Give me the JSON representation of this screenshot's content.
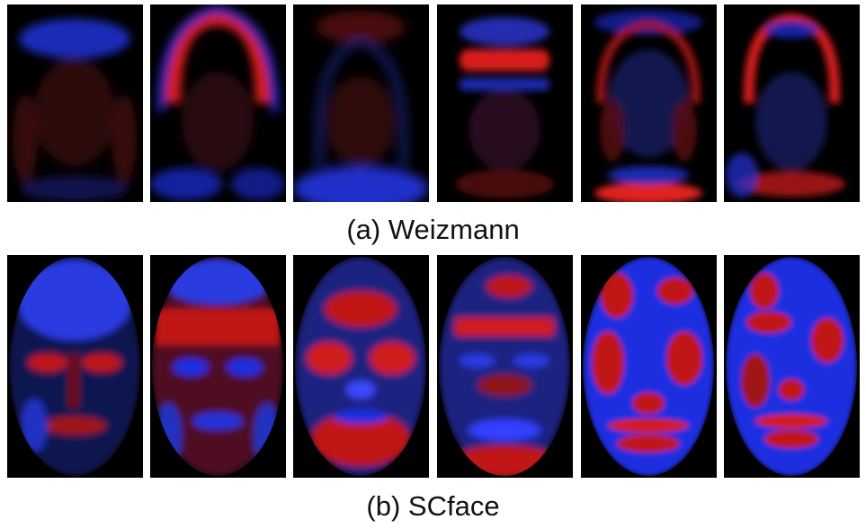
{
  "panels": [
    {
      "caption": "(a) Weizmann",
      "images": [
        {
          "name": "weizmann-face-map-1",
          "colors": [
            "#d01818",
            "#1e2ee0"
          ]
        },
        {
          "name": "weizmann-face-map-2",
          "colors": [
            "#d01818",
            "#1e2ee0"
          ]
        },
        {
          "name": "weizmann-face-map-3",
          "colors": [
            "#d01818",
            "#1e2ee0"
          ]
        },
        {
          "name": "weizmann-face-map-4",
          "colors": [
            "#d01818",
            "#1e2ee0"
          ]
        },
        {
          "name": "weizmann-face-map-5",
          "colors": [
            "#d01818",
            "#1e2ee0"
          ]
        },
        {
          "name": "weizmann-face-map-6",
          "colors": [
            "#d01818",
            "#1e2ee0"
          ]
        }
      ]
    },
    {
      "caption": "(b) SCface",
      "images": [
        {
          "name": "scface-face-map-1",
          "colors": [
            "#d01818",
            "#1e2ee0"
          ]
        },
        {
          "name": "scface-face-map-2",
          "colors": [
            "#d01818",
            "#1e2ee0"
          ]
        },
        {
          "name": "scface-face-map-3",
          "colors": [
            "#d01818",
            "#1e2ee0"
          ]
        },
        {
          "name": "scface-face-map-4",
          "colors": [
            "#d01818",
            "#1e2ee0"
          ]
        },
        {
          "name": "scface-face-map-5",
          "colors": [
            "#d01818",
            "#1e2ee0"
          ]
        },
        {
          "name": "scface-face-map-6",
          "colors": [
            "#d01818",
            "#1e2ee0"
          ]
        }
      ]
    }
  ]
}
